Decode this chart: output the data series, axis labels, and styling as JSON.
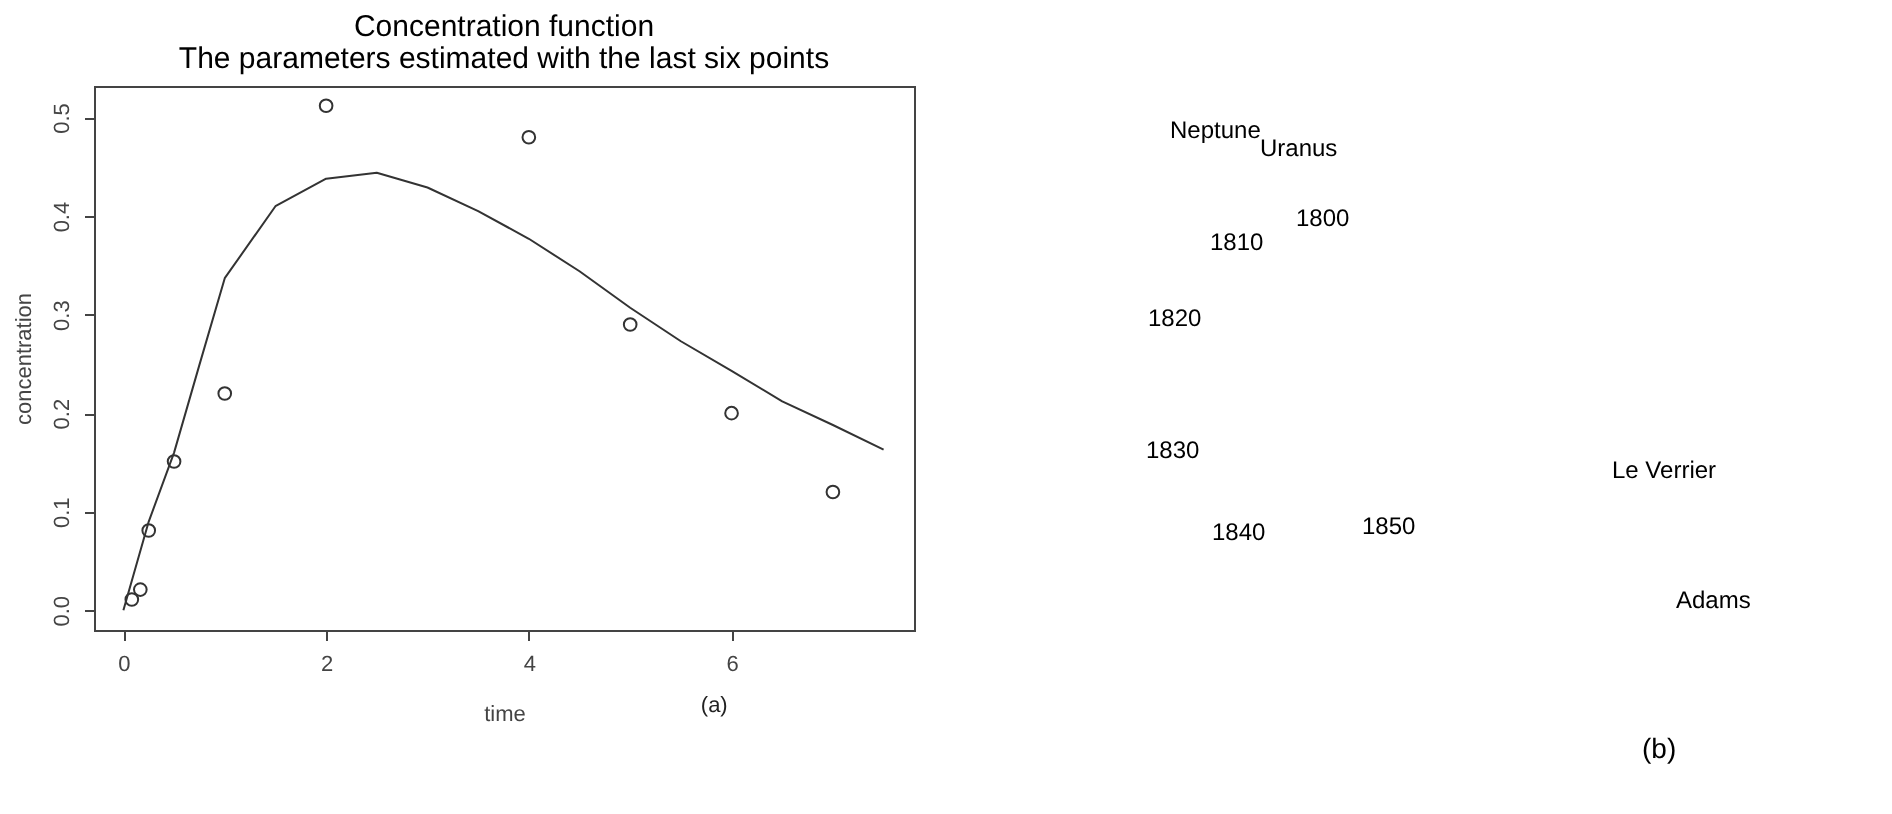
{
  "chart_data": [
    {
      "type": "scatter",
      "title": "Concentration function",
      "subtitle": "The parameters estimated with the last six points",
      "xlabel": "time",
      "ylabel": "concentration",
      "xlim": [
        -0.29,
        7.8
      ],
      "ylim": [
        -0.02,
        0.532
      ],
      "xticks": [
        0,
        2,
        4,
        6
      ],
      "yticks": [
        {
          "value": 0,
          "label": "0.0"
        },
        0.1,
        0.2,
        0.3,
        0.4,
        0.5
      ],
      "grid": false,
      "annotations": [
        "(a)"
      ],
      "series": [
        {
          "color": "#333333",
          "marker": "circle",
          "x": [
            0.083,
            0.167,
            0.25,
            0.5,
            1,
            2,
            4,
            5,
            6,
            7
          ],
          "values": [
            0.011,
            0.021,
            0.081,
            0.151,
            0.22,
            0.512,
            0.48,
            0.29,
            0.2,
            0.12
          ]
        },
        {
          "type": "line",
          "color": "#333333",
          "line_style": "solid",
          "marker": "none",
          "x": [
            0,
            0.25,
            0.5,
            0.75,
            1,
            1.5,
            2,
            2.5,
            3,
            3.5,
            4,
            4.5,
            5,
            5.5,
            6,
            6.5,
            7,
            7.5
          ],
          "values": [
            0,
            0.09,
            0.16,
            0.249,
            0.337,
            0.41,
            0.438,
            0.444,
            0.429,
            0.405,
            0.377,
            0.344,
            0.307,
            0.273,
            0.243,
            0.212,
            0.188,
            0.163
          ]
        }
      ]
    },
    {
      "type": "other",
      "annotations": [
        "Neptune",
        "Uranus",
        "1800",
        "1810",
        "1820",
        "1830",
        "1840",
        "1850",
        "Le Verrier",
        "Adams",
        "(b)"
      ]
    }
  ]
}
